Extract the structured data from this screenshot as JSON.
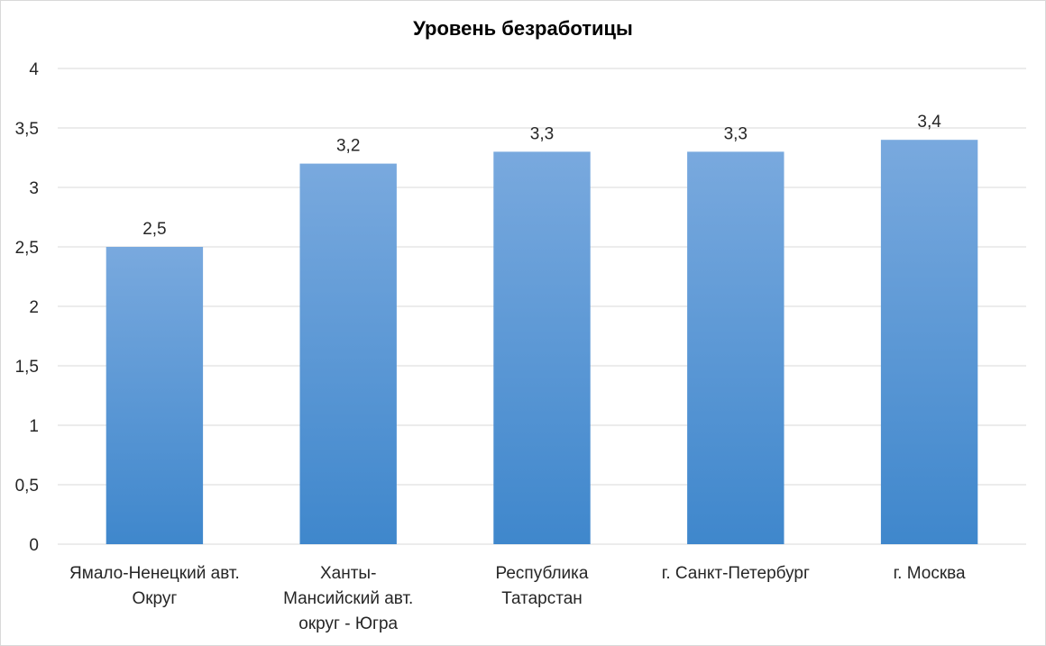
{
  "chart_data": {
    "type": "bar",
    "title": "Уровень безработицы",
    "xlabel": "",
    "ylabel": "",
    "ylim": [
      0,
      4
    ],
    "yticks": [
      0,
      0.5,
      1,
      1.5,
      2,
      2.5,
      3,
      3.5,
      4
    ],
    "ytick_labels": [
      "0",
      "0,5",
      "1",
      "1,5",
      "2",
      "2,5",
      "3",
      "3,5",
      "4"
    ],
    "categories": [
      "Ямало-Ненецкий авт. Округ",
      "Ханты-Мансийский авт. округ - Югра",
      "Республика Татарстан",
      "г. Санкт-Петербург",
      "г. Москва"
    ],
    "category_label_lines": [
      [
        "Ямало-Ненецкий авт.",
        "Округ"
      ],
      [
        "Ханты-",
        "Мансийский   авт.",
        "округ - Югра"
      ],
      [
        "Республика",
        "Татарстан"
      ],
      [
        "г. Санкт-Петербург"
      ],
      [
        "г. Москва"
      ]
    ],
    "values": [
      2.5,
      3.2,
      3.3,
      3.3,
      3.4
    ],
    "value_labels": [
      "2,5",
      "3,2",
      "3,3",
      "3,3",
      "3,4"
    ],
    "grid": true,
    "legend": "none",
    "colors": {
      "bar_top": "#79a9de",
      "bar_bottom": "#3f87cc",
      "grid": "#d9d9d9"
    }
  }
}
